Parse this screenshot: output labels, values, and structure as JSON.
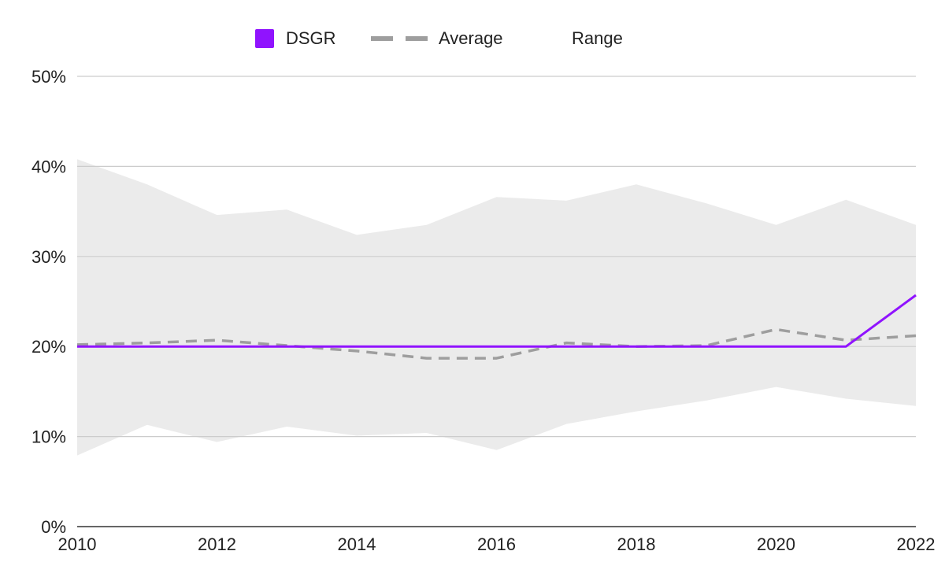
{
  "chart_data": {
    "type": "line",
    "title": "",
    "xlabel": "",
    "ylabel": "",
    "x": [
      2010,
      2011,
      2012,
      2013,
      2014,
      2015,
      2016,
      2017,
      2018,
      2019,
      2020,
      2021,
      2022
    ],
    "x_ticks": [
      "2010",
      "2012",
      "2014",
      "2016",
      "2018",
      "2020",
      "2022"
    ],
    "y_ticks": [
      "0%",
      "10%",
      "20%",
      "30%",
      "40%",
      "50%"
    ],
    "ylim": [
      0,
      50
    ],
    "y_unit": "%",
    "grid": true,
    "legend_position": "top",
    "series": [
      {
        "name": "DSGR",
        "style": "solid",
        "color": "#9013fe",
        "values": [
          20,
          20,
          20,
          20,
          20,
          20,
          20,
          20,
          20,
          20,
          20,
          20,
          25.7
        ]
      },
      {
        "name": "Average",
        "style": "dashed",
        "color": "#9e9e9e",
        "values": [
          20.2,
          20.4,
          20.7,
          20.1,
          19.5,
          18.7,
          18.7,
          20.4,
          20.0,
          20.1,
          21.9,
          20.7,
          21.2
        ]
      },
      {
        "name": "Range",
        "style": "area",
        "color": "#ebebeb",
        "low": [
          7.9,
          11.3,
          9.4,
          11.1,
          10.1,
          10.4,
          8.5,
          11.4,
          12.8,
          14.0,
          15.5,
          14.2,
          13.4
        ],
        "high": [
          40.8,
          38.0,
          34.6,
          35.2,
          32.4,
          33.5,
          36.6,
          36.2,
          38.0,
          35.9,
          33.5,
          36.3,
          33.5
        ]
      }
    ]
  }
}
